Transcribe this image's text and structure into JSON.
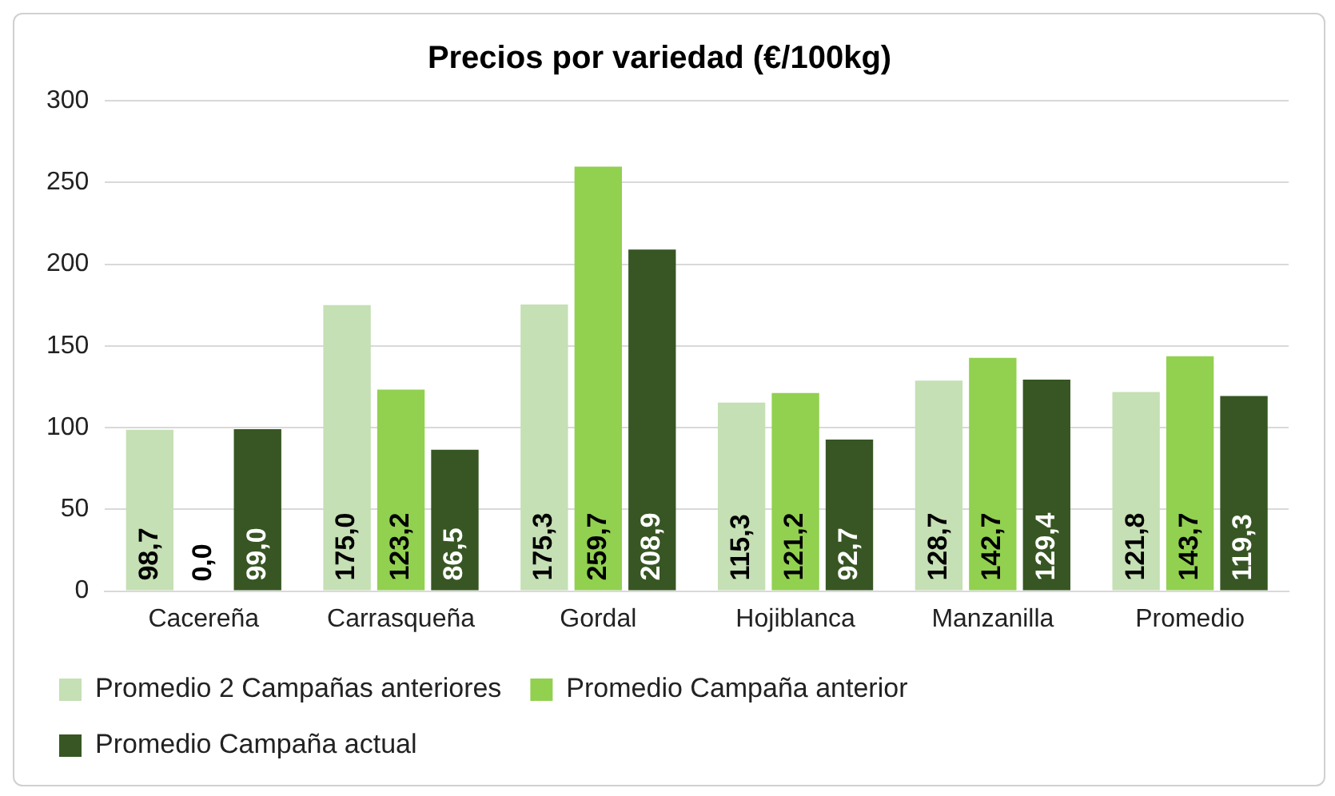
{
  "chart_data": {
    "type": "bar",
    "title": "Precios por variedad (€/100kg)",
    "categories": [
      "Cacereña",
      "Carrasqueña",
      "Gordal",
      "Hojiblanca",
      "Manzanilla",
      "Promedio"
    ],
    "series": [
      {
        "name": "Promedio 2 Campañas anteriores",
        "color": "#c5e0b4",
        "values": [
          98.7,
          175.0,
          175.3,
          115.3,
          128.7,
          121.8
        ],
        "value_labels": [
          "98,7",
          "175,0",
          "175,3",
          "115,3",
          "128,7",
          "121,8"
        ]
      },
      {
        "name": "Promedio Campaña anterior",
        "color": "#92d050",
        "values": [
          0.0,
          123.2,
          259.7,
          121.2,
          142.7,
          143.7
        ],
        "value_labels": [
          "0,0",
          "123,2",
          "259,7",
          "121,2",
          "142,7",
          "143,7"
        ]
      },
      {
        "name": "Promedio Campaña actual",
        "color": "#375623",
        "values": [
          99.0,
          86.5,
          208.9,
          92.7,
          129.4,
          119.3
        ],
        "value_labels": [
          "99,0",
          "86,5",
          "208,9",
          "92,7",
          "129,4",
          "119,3"
        ]
      }
    ],
    "ylim": [
      0,
      300
    ],
    "yticks": [
      0,
      50,
      100,
      150,
      200,
      250,
      300
    ],
    "grid": "y",
    "legend": "bottom"
  }
}
